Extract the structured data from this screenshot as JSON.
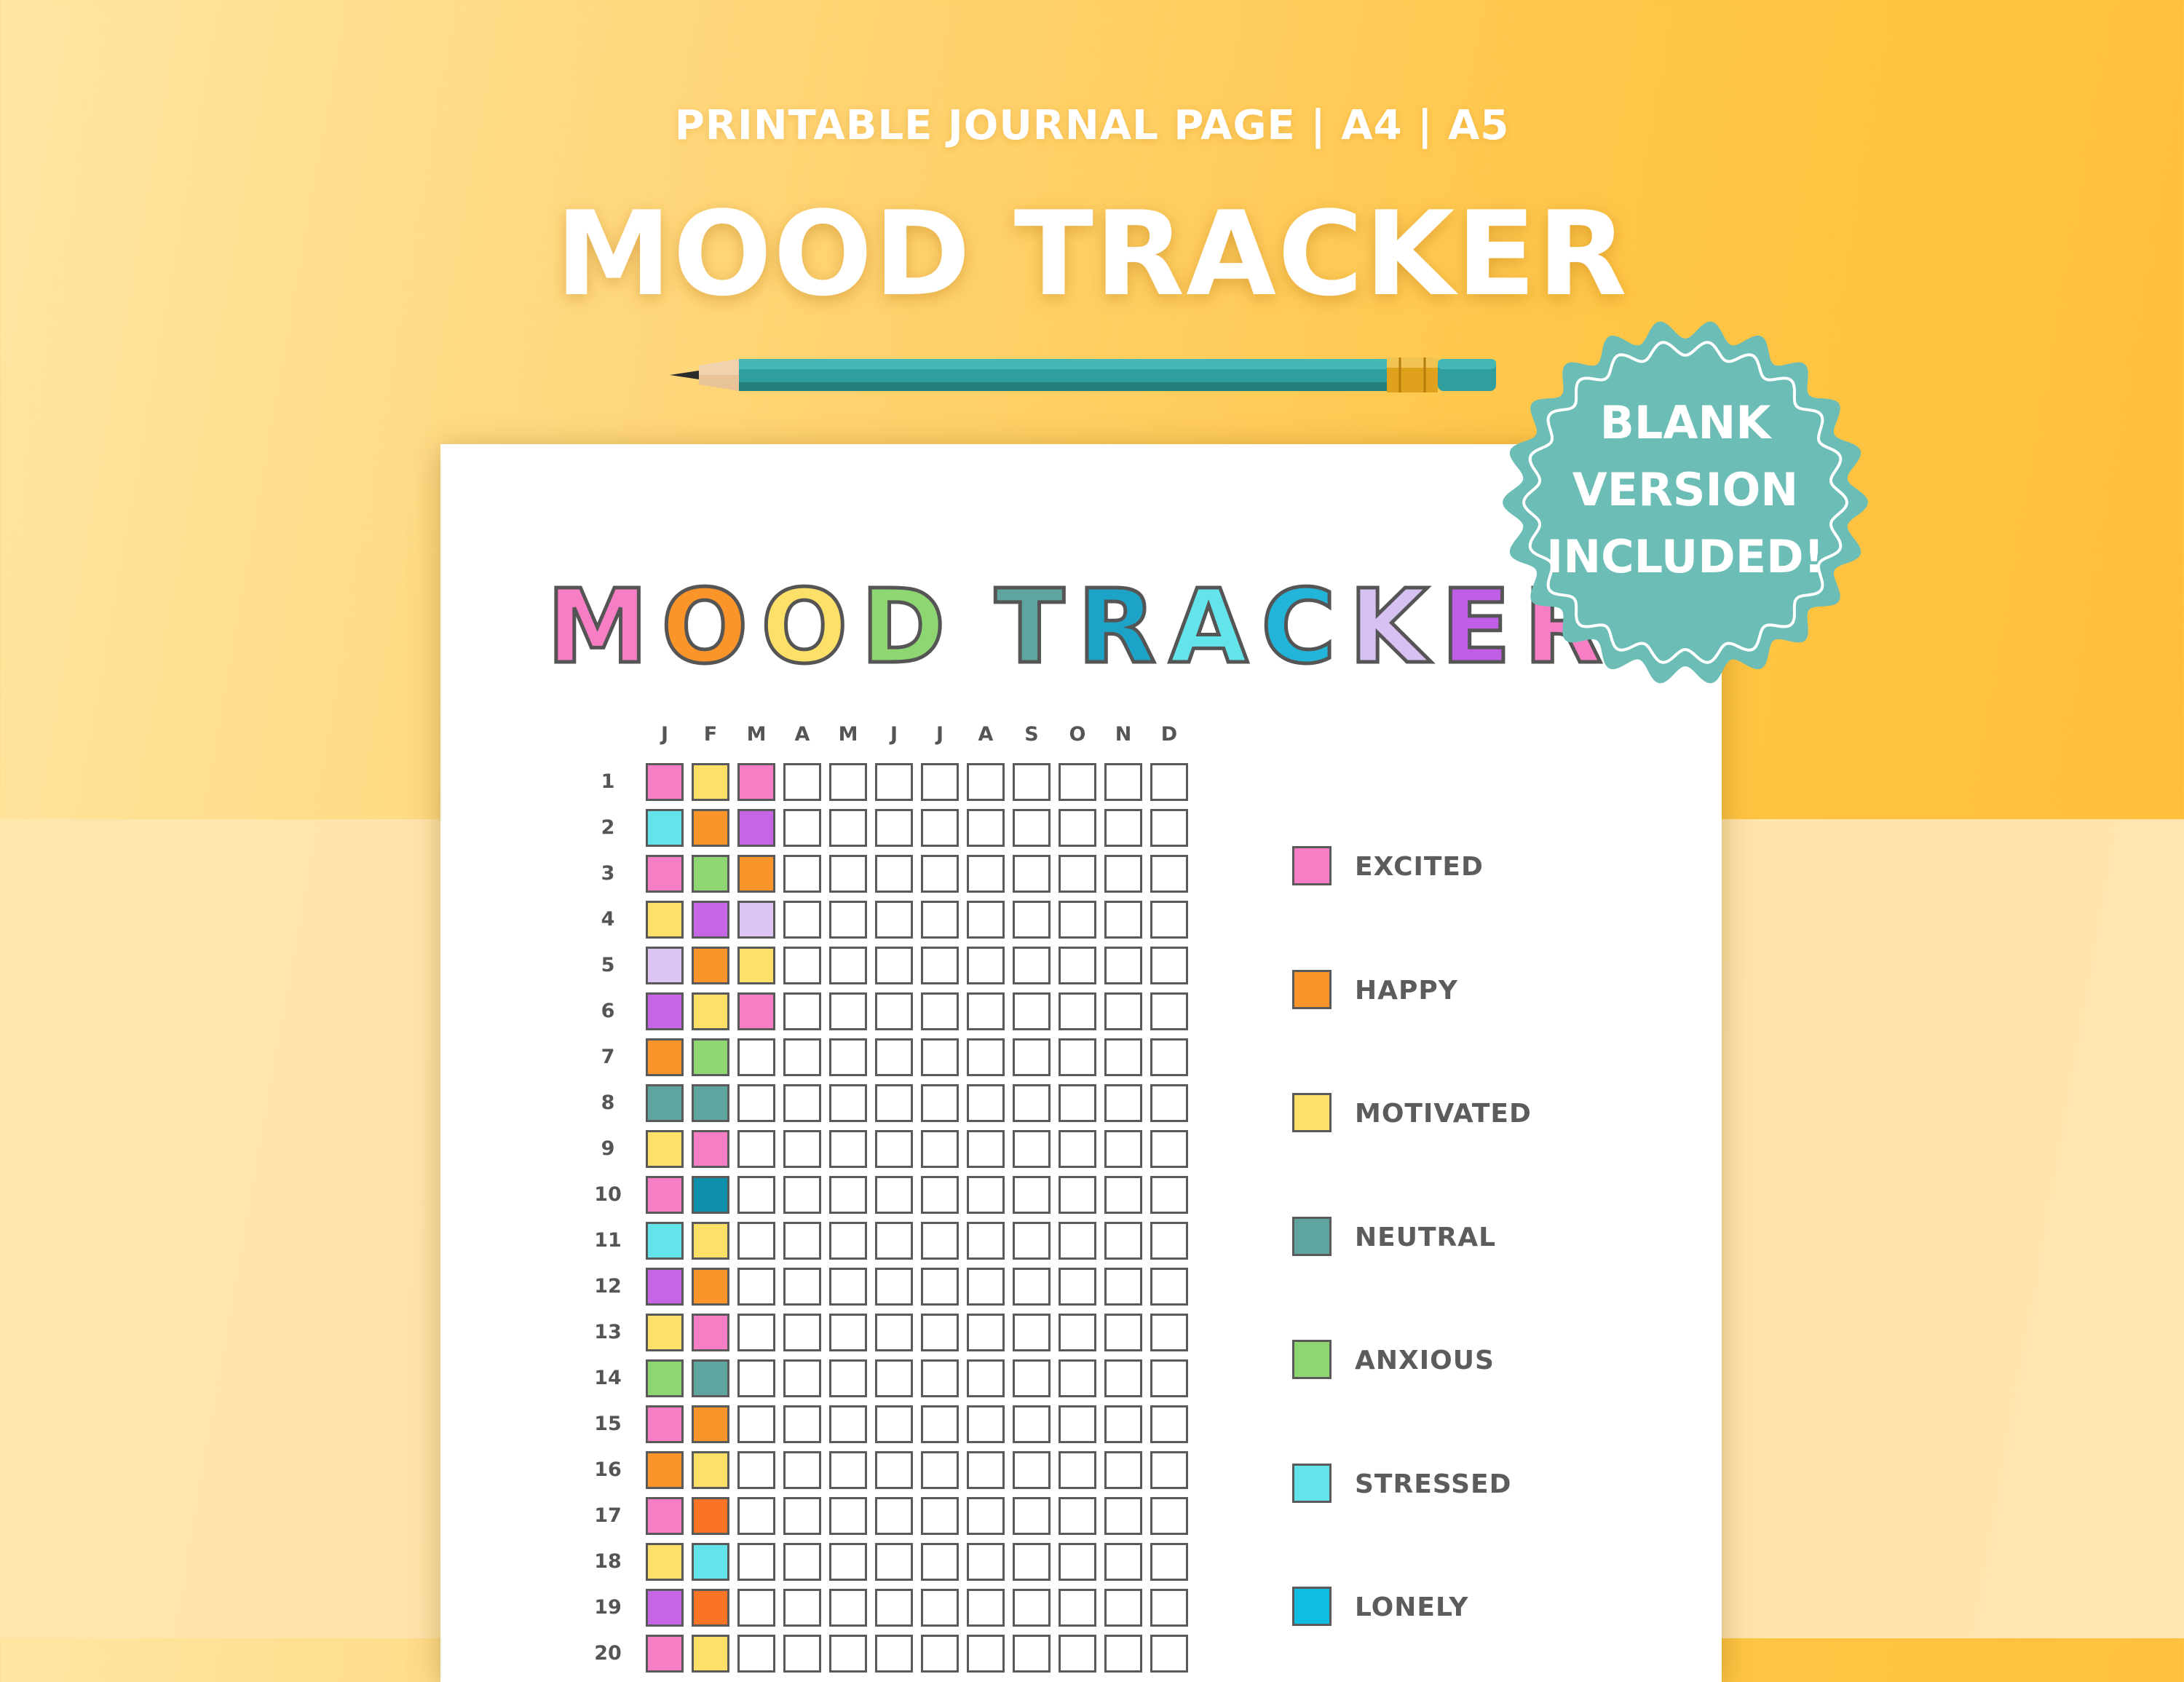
{
  "header": {
    "subtitle": "PRINTABLE JOURNAL PAGE | A4 | A5",
    "title": "MOOD TRACKER"
  },
  "badge": {
    "lines": [
      "BLANK",
      "VERSION",
      "INCLUDED!"
    ],
    "color": "#6cbdb6"
  },
  "sheet": {
    "title_letters": [
      {
        "ch": "M",
        "color": "#f77ec5"
      },
      {
        "ch": "O",
        "color": "#fb9429"
      },
      {
        "ch": "O",
        "color": "#fde067"
      },
      {
        "ch": "D",
        "color": "#8ed672"
      },
      {
        "ch": " ",
        "color": "#ffffff"
      },
      {
        "ch": "T",
        "color": "#5ea5a0"
      },
      {
        "ch": "R",
        "color": "#1da3c8"
      },
      {
        "ch": "A",
        "color": "#63e3ea"
      },
      {
        "ch": "C",
        "color": "#23b5d9"
      },
      {
        "ch": "K",
        "color": "#d6c1f2"
      },
      {
        "ch": "E",
        "color": "#c05fe6"
      },
      {
        "ch": "R",
        "color": "#f77ec5"
      }
    ],
    "months": [
      "J",
      "F",
      "M",
      "A",
      "M",
      "J",
      "J",
      "A",
      "S",
      "O",
      "N",
      "D"
    ],
    "days": [
      "1",
      "2",
      "3",
      "4",
      "5",
      "6",
      "7",
      "8",
      "9",
      "10",
      "11",
      "12",
      "13",
      "14",
      "15",
      "16",
      "17",
      "18",
      "19",
      "20"
    ],
    "colors": {
      "excited": "#f77ec5",
      "happy": "#fb9429",
      "motivated": "#fde067",
      "neutral": "#5ea5a0",
      "anxious": "#8ed672",
      "stressed": "#63e3ea",
      "lonely": "#10bde2",
      "lavender": "#dcc5f5",
      "purple": "#c466e6",
      "teal_dark": "#0e8fac",
      "red_orange": "#fb7326"
    },
    "filled": [
      [
        "excited",
        "motivated",
        "excited"
      ],
      [
        "stressed",
        "happy",
        "purple"
      ],
      [
        "excited",
        "anxious",
        "happy"
      ],
      [
        "motivated",
        "purple",
        "lavender"
      ],
      [
        "lavender",
        "happy",
        "motivated"
      ],
      [
        "purple",
        "motivated",
        "excited"
      ],
      [
        "happy",
        "anxious"
      ],
      [
        "neutral",
        "neutral"
      ],
      [
        "motivated",
        "excited"
      ],
      [
        "excited",
        "teal_dark"
      ],
      [
        "stressed",
        "motivated"
      ],
      [
        "purple",
        "happy"
      ],
      [
        "motivated",
        "excited"
      ],
      [
        "anxious",
        "neutral"
      ],
      [
        "excited",
        "happy"
      ],
      [
        "happy",
        "motivated"
      ],
      [
        "excited",
        "red_orange"
      ],
      [
        "motivated",
        "stressed"
      ],
      [
        "purple",
        "red_orange"
      ],
      [
        "excited",
        "motivated"
      ]
    ],
    "legend": [
      {
        "label": "EXCITED",
        "color": "#f77ec5"
      },
      {
        "label": "HAPPY",
        "color": "#fb9429"
      },
      {
        "label": "MOTIVATED",
        "color": "#fde067"
      },
      {
        "label": "NEUTRAL",
        "color": "#5ea5a0"
      },
      {
        "label": "ANXIOUS",
        "color": "#8ed672"
      },
      {
        "label": "STRESSED",
        "color": "#63e3ea"
      },
      {
        "label": "LONELY",
        "color": "#10bde2"
      }
    ]
  }
}
